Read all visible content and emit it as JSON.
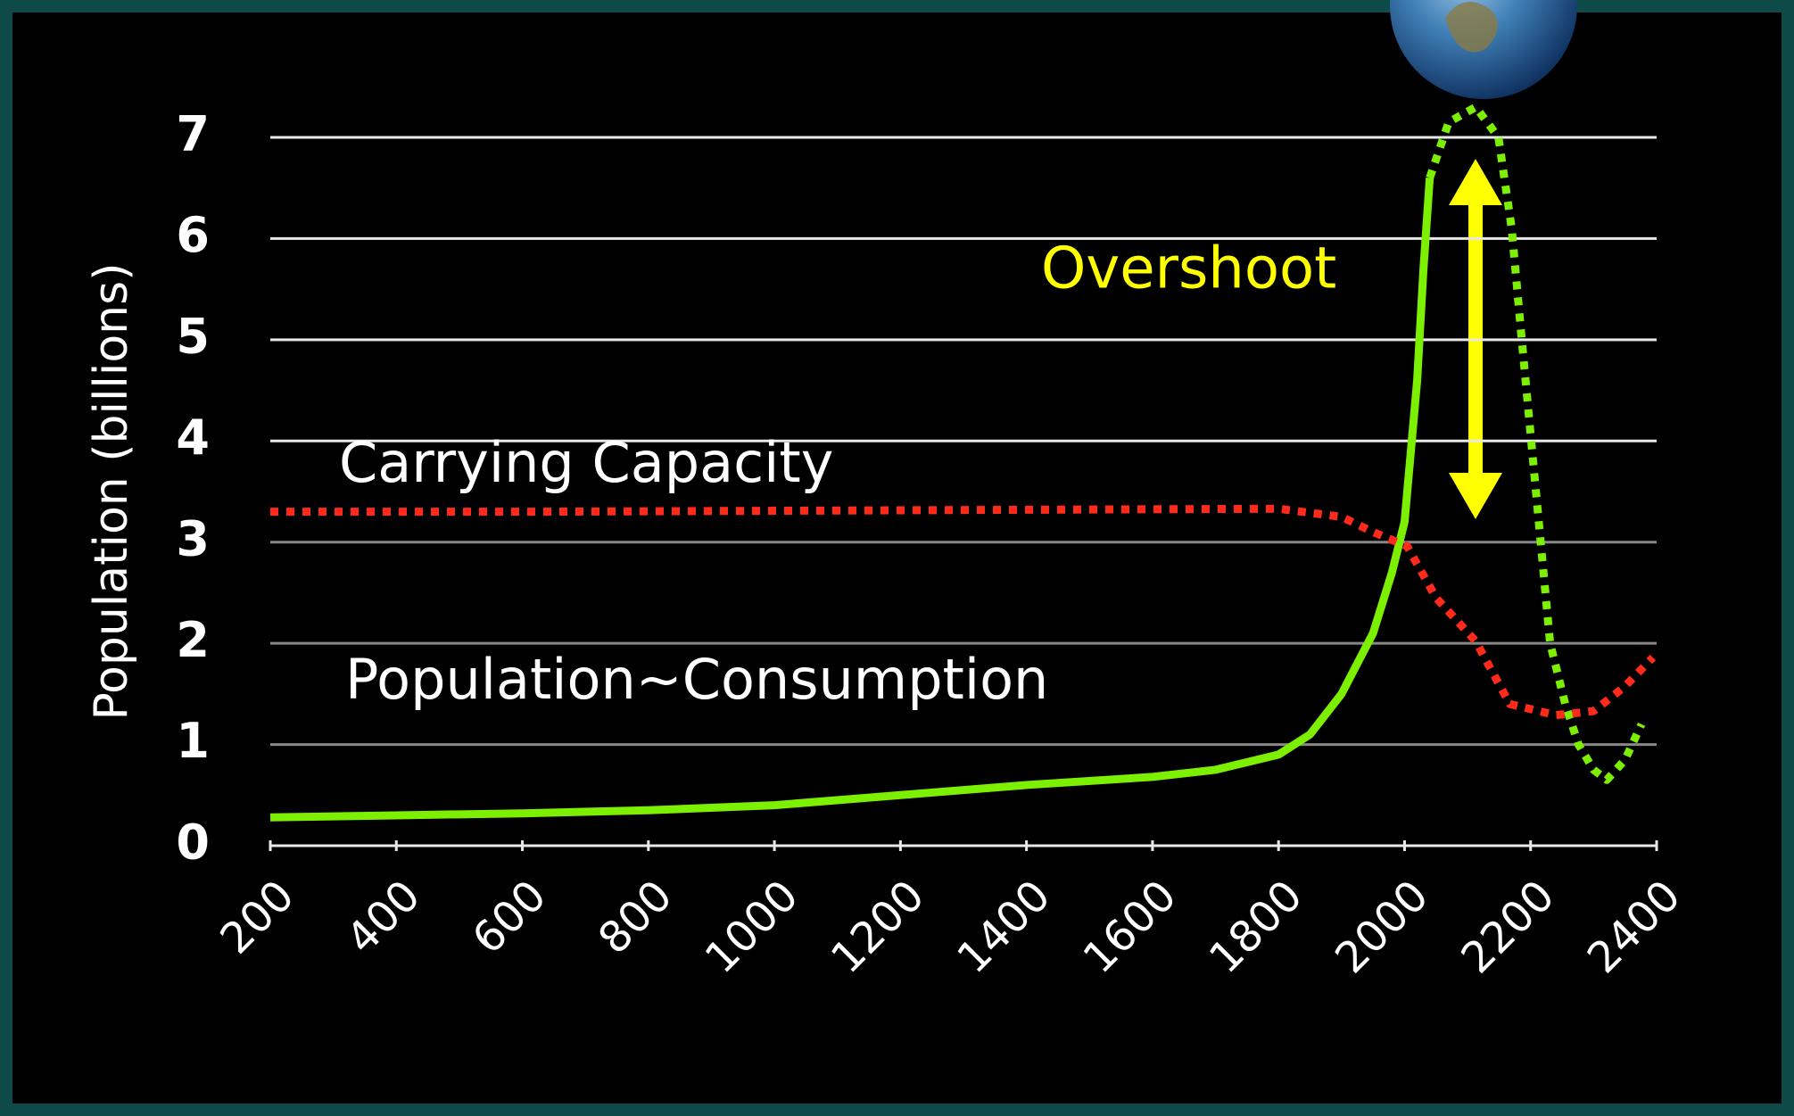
{
  "chart_data": {
    "type": "line",
    "y_label": "Population (billions)",
    "xlim": [
      200,
      2400
    ],
    "xticks": [
      200,
      400,
      600,
      800,
      1000,
      1200,
      1400,
      1600,
      1800,
      2000,
      2200,
      2400
    ],
    "ylim": [
      0,
      7
    ],
    "yticks": [
      0,
      1,
      2,
      3,
      4,
      5,
      6,
      7
    ],
    "grid": true,
    "series": [
      {
        "name": "Population~Consumption",
        "color": "#7cf000",
        "dash": false,
        "x": [
          200,
          400,
          600,
          800,
          1000,
          1200,
          1400,
          1600,
          1700,
          1800,
          1850,
          1900,
          1950,
          1980,
          2000,
          2020,
          2030,
          2040
        ],
        "values": [
          0.28,
          0.3,
          0.32,
          0.35,
          0.4,
          0.5,
          0.6,
          0.68,
          0.75,
          0.9,
          1.1,
          1.5,
          2.1,
          2.7,
          3.2,
          4.6,
          5.7,
          6.6
        ]
      },
      {
        "color": "#7cf000",
        "dash": true,
        "x": [
          2040,
          2070,
          2113,
          2149,
          2170,
          2186,
          2210,
          2231,
          2255,
          2276,
          2300,
          2321,
          2350,
          2376
        ],
        "values": [
          6.6,
          7.15,
          7.3,
          7.0,
          6.1,
          5.0,
          3.4,
          2.0,
          1.4,
          1.0,
          0.75,
          0.65,
          0.85,
          1.2
        ]
      },
      {
        "name": "Carrying Capacity",
        "color": "#ff2a1a",
        "dash": true,
        "x": [
          200,
          600,
          1000,
          1400,
          1800,
          1900,
          1950,
          2004,
          2050,
          2113,
          2167,
          2240,
          2300,
          2349,
          2394
        ],
        "values": [
          3.3,
          3.3,
          3.31,
          3.32,
          3.33,
          3.25,
          3.1,
          2.96,
          2.45,
          2.02,
          1.4,
          1.29,
          1.33,
          1.57,
          1.86
        ]
      }
    ],
    "annotations": [
      {
        "text": "Overshoot",
        "color": "#ffff00"
      }
    ]
  }
}
